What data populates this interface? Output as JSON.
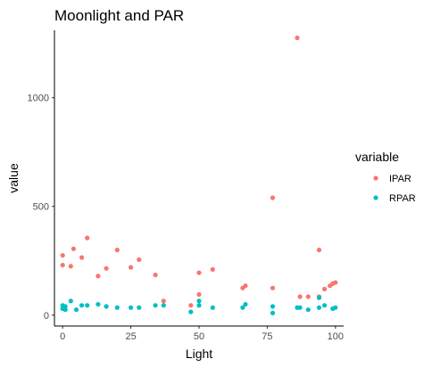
{
  "chart_data": {
    "type": "scatter",
    "title": "Moonlight and PAR",
    "xlabel": "Light",
    "ylabel": "value",
    "xlim": [
      -3,
      103
    ],
    "ylim": [
      -50,
      1310
    ],
    "x_ticks": [
      0,
      25,
      50,
      75,
      100
    ],
    "x_tick_labels": [
      "0",
      "25",
      "50",
      "75",
      "100"
    ],
    "y_ticks": [
      0,
      500,
      1000
    ],
    "y_tick_labels": [
      "0",
      "500",
      "1000"
    ],
    "grid": false,
    "legend": {
      "title": "variable",
      "position": "right"
    },
    "series": [
      {
        "name": "IPAR",
        "color": "#F8766D",
        "points": [
          [
            0,
            275
          ],
          [
            0,
            230
          ],
          [
            3,
            225
          ],
          [
            4,
            305
          ],
          [
            7,
            265
          ],
          [
            9,
            355
          ],
          [
            13,
            180
          ],
          [
            16,
            215
          ],
          [
            20,
            300
          ],
          [
            25,
            220
          ],
          [
            28,
            255
          ],
          [
            34,
            185
          ],
          [
            37,
            65
          ],
          [
            47,
            45
          ],
          [
            50,
            95
          ],
          [
            50,
            195
          ],
          [
            55,
            210
          ],
          [
            66,
            125
          ],
          [
            67,
            135
          ],
          [
            77,
            540
          ],
          [
            77,
            125
          ],
          [
            86,
            1275
          ],
          [
            87,
            85
          ],
          [
            90,
            85
          ],
          [
            94,
            300
          ],
          [
            94,
            85
          ],
          [
            96,
            120
          ],
          [
            98,
            135
          ],
          [
            99,
            145
          ],
          [
            100,
            150
          ]
        ]
      },
      {
        "name": "RPAR",
        "color": "#00BFC4",
        "points": [
          [
            0,
            45
          ],
          [
            0,
            30
          ],
          [
            1,
            25
          ],
          [
            1,
            40
          ],
          [
            3,
            65
          ],
          [
            5,
            25
          ],
          [
            7,
            45
          ],
          [
            9,
            45
          ],
          [
            13,
            50
          ],
          [
            16,
            40
          ],
          [
            20,
            35
          ],
          [
            25,
            35
          ],
          [
            28,
            35
          ],
          [
            34,
            45
          ],
          [
            37,
            45
          ],
          [
            47,
            15
          ],
          [
            50,
            65
          ],
          [
            50,
            45
          ],
          [
            55,
            35
          ],
          [
            66,
            35
          ],
          [
            67,
            50
          ],
          [
            77,
            40
          ],
          [
            77,
            10
          ],
          [
            86,
            35
          ],
          [
            87,
            35
          ],
          [
            90,
            25
          ],
          [
            94,
            35
          ],
          [
            94,
            80
          ],
          [
            96,
            45
          ],
          [
            99,
            30
          ],
          [
            100,
            35
          ]
        ]
      }
    ]
  }
}
